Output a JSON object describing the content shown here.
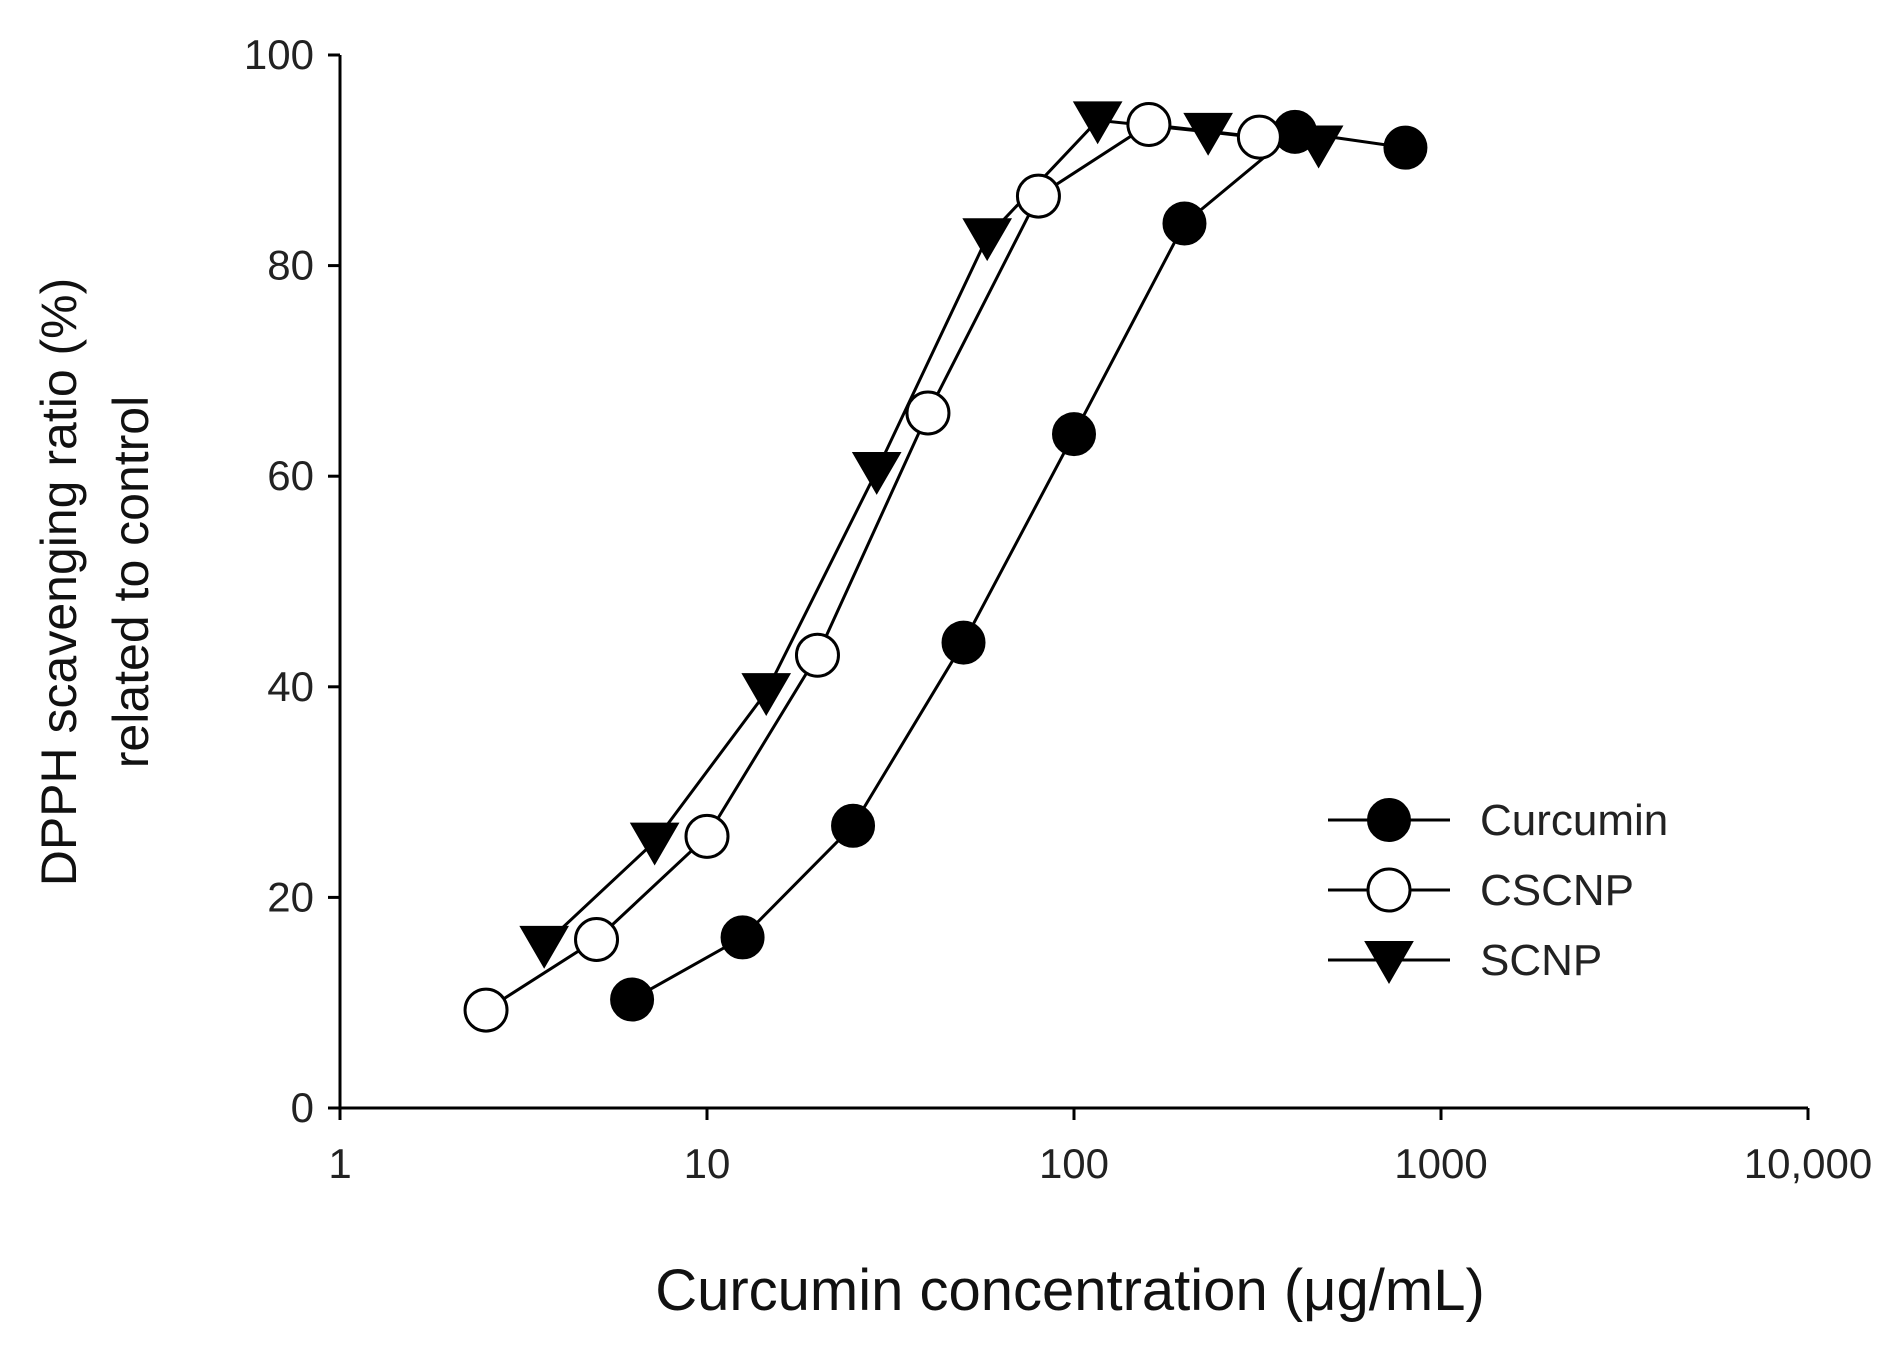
{
  "chart_data": {
    "type": "line",
    "x_scale": "log",
    "xlim": [
      1,
      10000
    ],
    "ylim": [
      0,
      100
    ],
    "x_ticks": [
      {
        "value": 1,
        "label": "1"
      },
      {
        "value": 10,
        "label": "10"
      },
      {
        "value": 100,
        "label": "100"
      },
      {
        "value": 1000,
        "label": "1000"
      },
      {
        "value": 10000,
        "label": "10,000"
      }
    ],
    "y_ticks": [
      {
        "value": 0,
        "label": "0"
      },
      {
        "value": 20,
        "label": "20"
      },
      {
        "value": 40,
        "label": "40"
      },
      {
        "value": 60,
        "label": "60"
      },
      {
        "value": 80,
        "label": "80"
      },
      {
        "value": 100,
        "label": "100"
      }
    ],
    "xlabel": "Curcumin concentration (μg/mL)",
    "ylabel_line1": "DPPH scavenging ratio (%)",
    "ylabel_line2": "related to control",
    "legend_position": "bottom-right",
    "series": [
      {
        "name": "Curcumin",
        "marker": "filled-circle",
        "x": [
          6.25,
          12.5,
          25,
          50,
          100,
          200,
          400,
          800
        ],
        "y": [
          10.3,
          16.2,
          26.8,
          44.2,
          64.0,
          84.0,
          92.7,
          91.2
        ]
      },
      {
        "name": "CSCNP",
        "marker": "open-circle",
        "x": [
          2.5,
          5,
          10,
          20,
          40,
          80,
          160,
          320
        ],
        "y": [
          9.3,
          16.0,
          25.8,
          43.0,
          66.0,
          86.6,
          93.4,
          92.2
        ]
      },
      {
        "name": "SCNP",
        "marker": "filled-down-triangle",
        "x": [
          3.6,
          7.2,
          14.5,
          29,
          58,
          116,
          232,
          464
        ],
        "y": [
          15.5,
          25.3,
          39.5,
          60.5,
          82.7,
          93.8,
          92.7,
          91.5
        ]
      }
    ]
  }
}
